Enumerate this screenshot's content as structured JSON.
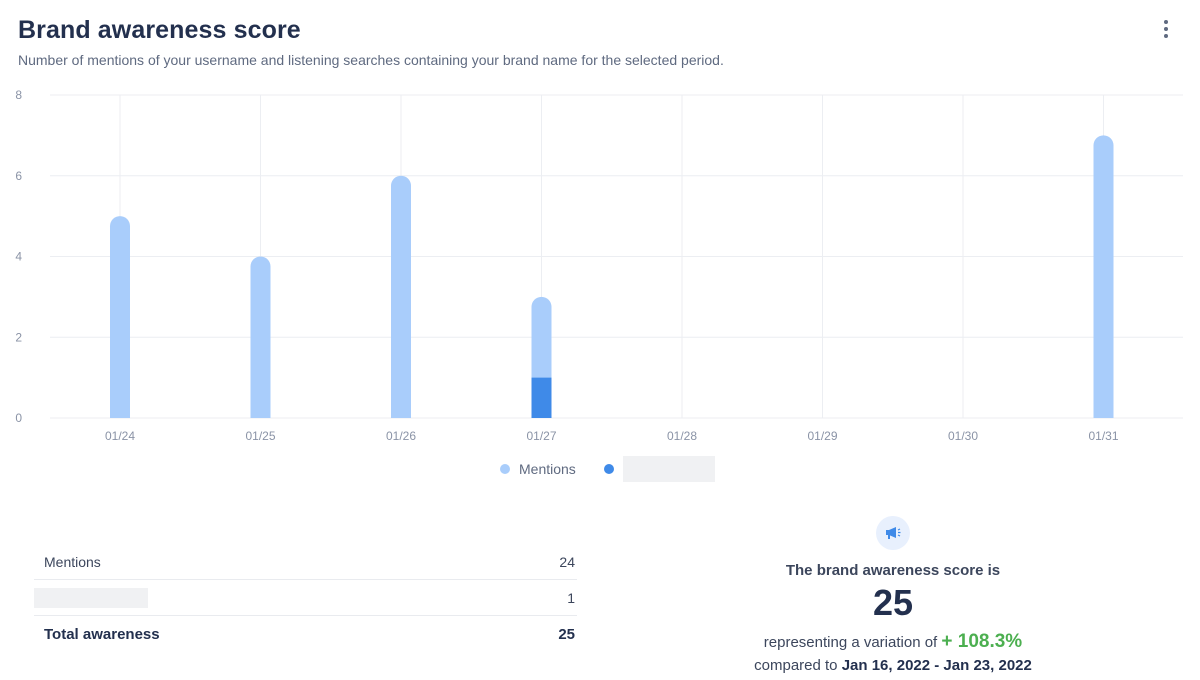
{
  "header": {
    "title": "Brand awareness score",
    "subtitle": "Number of mentions of your username and listening searches containing your brand name for the selected period.",
    "menu_icon": "more-vertical-icon"
  },
  "chart_data": {
    "type": "bar",
    "stacked": true,
    "categories": [
      "01/24",
      "01/25",
      "01/26",
      "01/27",
      "01/28",
      "01/29",
      "01/30",
      "01/31"
    ],
    "series": [
      {
        "name": "Mentions",
        "color": "#a9cdfb",
        "values": [
          5,
          4,
          6,
          2,
          0,
          0,
          0,
          7
        ]
      },
      {
        "name": "",
        "color": "#3f8ae8",
        "values": [
          0,
          0,
          0,
          1,
          0,
          0,
          0,
          0
        ]
      }
    ],
    "yticks": [
      0,
      2,
      4,
      6,
      8
    ],
    "ylim": [
      0,
      8
    ],
    "grid": true,
    "legend_position": "bottom"
  },
  "table": {
    "rows": [
      {
        "label": "Mentions",
        "value": "24"
      },
      {
        "label": "",
        "value": "1"
      }
    ],
    "total": {
      "label": "Total awareness",
      "value": "25"
    }
  },
  "summary": {
    "icon": "megaphone-icon",
    "heading": "The brand awareness score is",
    "score": "25",
    "variation_text": "representing a variation of",
    "variation_value": "+ 108.3%",
    "compared_text": "compared to",
    "period": "Jan 16, 2022 - Jan 23, 2022",
    "accent_color": "#4caf50"
  }
}
